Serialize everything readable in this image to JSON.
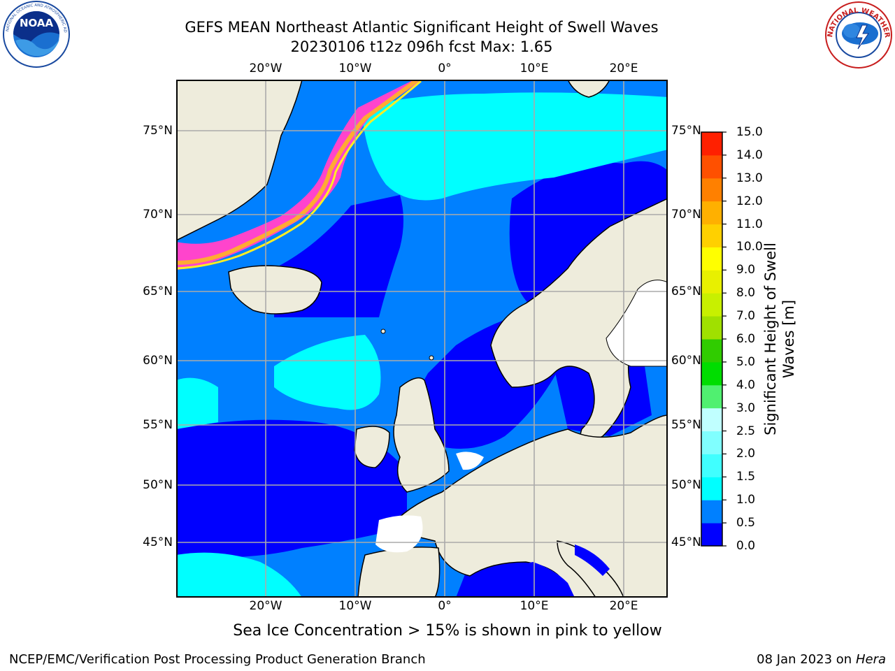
{
  "title": {
    "line1": "GEFS MEAN Northeast Atlantic Significant Height of Swell Waves",
    "line2": "20230106 t12z 096h fcst    Max: 1.65"
  },
  "logos": {
    "left": "noaa-logo",
    "right": "nws-logo"
  },
  "map": {
    "projection": "lat-lon",
    "lon_ticks": [
      "20°W",
      "10°W",
      "0°",
      "10°E",
      "20°E"
    ],
    "lat_ticks": [
      "75°N",
      "70°N",
      "65°N",
      "60°N",
      "55°N",
      "50°N",
      "45°N"
    ],
    "land_color": "#eeecdc",
    "ice_colors": [
      "#ff44cc",
      "#ffaa33",
      "#ffee22"
    ]
  },
  "colorbar": {
    "title": "Significant Height of Swell Waves [m]",
    "tick_labels": [
      "0.0",
      "0.5",
      "1.0",
      "1.5",
      "2.0",
      "2.5",
      "3.0",
      "4.0",
      "5.0",
      "6.0",
      "7.0",
      "8.0",
      "9.0",
      "10.0",
      "11.0",
      "12.0",
      "13.0",
      "14.0",
      "15.0"
    ],
    "colors": [
      "#0000ff",
      "#0080ff",
      "#00ffff",
      "#40ffff",
      "#80ffff",
      "#c0ffff",
      "#50f070",
      "#00dd00",
      "#30cc00",
      "#a0e000",
      "#c8f000",
      "#e8f000",
      "#ffff00",
      "#ffd000",
      "#ffb000",
      "#ff8000",
      "#ff5000",
      "#ff2000"
    ]
  },
  "caption": "Sea Ice Concentration > 15% is shown in pink to yellow",
  "footer": {
    "left": "NCEP/EMC/Verification Post Processing Product Generation Branch",
    "date": "08 Jan 2023",
    "on": "on",
    "machine": "Hera"
  }
}
